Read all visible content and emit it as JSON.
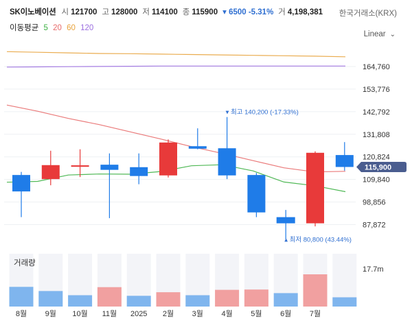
{
  "header": {
    "name": "SK이노베이션",
    "open_label": "시",
    "open": "121700",
    "high_label": "고",
    "high": "128000",
    "low_label": "저",
    "low": "114100",
    "close_label": "종",
    "close": "115900",
    "change": "▾ 6500 -5.31%",
    "volume_label": "거",
    "volume": "4,198,381",
    "exchange": "한국거래소(KRX)"
  },
  "moving_avg": {
    "label": "이동평균",
    "items": [
      {
        "period": "5",
        "color": "#3cb043"
      },
      {
        "period": "20",
        "color": "#e86a6a"
      },
      {
        "period": "60",
        "color": "#e8a33c"
      },
      {
        "period": "120",
        "color": "#9b6ee0"
      }
    ]
  },
  "scale": {
    "label": "Linear"
  },
  "chart_data": {
    "type": "candlestick",
    "x_labels": [
      "8월",
      "9월",
      "10월",
      "11월",
      "2025",
      "2월",
      "3월",
      "4월",
      "5월",
      "6월",
      "7월"
    ],
    "y_ticks": [
      "164,760",
      "153,776",
      "142,792",
      "131,808",
      "120,824",
      "109,840",
      "98,856",
      "87,872"
    ],
    "y_tick_values": [
      164760,
      153776,
      142792,
      131808,
      120824,
      109840,
      98856,
      87872
    ],
    "current_price_label": "115,900",
    "current_price": 115900,
    "candles": [
      {
        "label": "8월",
        "open": 112000,
        "high": 113500,
        "low": 91500,
        "close": 104000
      },
      {
        "label": "9월",
        "open": 110000,
        "high": 123800,
        "low": 107000,
        "close": 116800
      },
      {
        "label": "10월",
        "open": 116000,
        "high": 124500,
        "low": 111000,
        "close": 116700
      },
      {
        "label": "11월",
        "open": 117000,
        "high": 122500,
        "low": 91000,
        "close": 114500
      },
      {
        "label": "2025",
        "open": 115800,
        "high": 122500,
        "low": 107500,
        "close": 111500
      },
      {
        "label": "2월",
        "open": 111800,
        "high": 129300,
        "low": 110800,
        "close": 127800
      },
      {
        "label": "3월",
        "open": 126000,
        "high": 134700,
        "low": 124500,
        "close": 124800
      },
      {
        "label": "4월",
        "open": 125000,
        "high": 140200,
        "low": 110000,
        "close": 111800
      },
      {
        "label": "5월",
        "open": 112000,
        "high": 113000,
        "low": 91500,
        "close": 93800
      },
      {
        "label": "6월",
        "open": 91500,
        "high": 95000,
        "low": 80800,
        "close": 88500
      },
      {
        "label": "7월",
        "open": 88500,
        "high": 123500,
        "low": 87000,
        "close": 122800
      },
      {
        "label": "",
        "open": 121700,
        "high": 128000,
        "low": 114100,
        "close": 115900
      }
    ],
    "moving_averages": [
      {
        "period": "5",
        "values": [
          108500,
          108900,
          112000,
          112500,
          112400,
          113700,
          116500,
          117000,
          114000,
          108600,
          106800,
          103900
        ]
      },
      {
        "period": "20",
        "values": [
          146000,
          143000,
          139500,
          136500,
          133000,
          129500,
          125800,
          122500,
          119000,
          115500,
          113500,
          113800
        ]
      },
      {
        "period": "60",
        "values": [
          172000,
          171700,
          171400,
          171100,
          171000,
          170800,
          170600,
          170400,
          170200,
          170000,
          169800,
          169500
        ]
      },
      {
        "period": "120",
        "values": [
          164500,
          164600,
          164700,
          164800,
          164900,
          165000,
          165000,
          165000,
          165000,
          165000,
          165000,
          165000
        ]
      }
    ],
    "annotations": [
      {
        "text": "▾ 최고 140,200 (-17.33%)",
        "price": 140200,
        "candle": 7
      },
      {
        "text": "▴ 최저 80,800 (43.44%)",
        "price": 80800,
        "candle": 9
      }
    ],
    "volume": {
      "title": "거래량",
      "axis_label": "17.7m",
      "axis_value": 17700000,
      "max": 17700000,
      "bars": [
        {
          "value": 6600000,
          "direction": "down"
        },
        {
          "value": 5200000,
          "direction": "down"
        },
        {
          "value": 3800000,
          "direction": "down"
        },
        {
          "value": 6500000,
          "direction": "up"
        },
        {
          "value": 3600000,
          "direction": "down"
        },
        {
          "value": 4800000,
          "direction": "up"
        },
        {
          "value": 3800000,
          "direction": "down"
        },
        {
          "value": 5600000,
          "direction": "up"
        },
        {
          "value": 5700000,
          "direction": "up"
        },
        {
          "value": 4500000,
          "direction": "down"
        },
        {
          "value": 10800000,
          "direction": "up"
        },
        {
          "value": 3100000,
          "direction": "down"
        }
      ]
    },
    "colors": {
      "up": "#e83a3a",
      "down": "#1f7ce8",
      "up_light": "#f1a0a0",
      "down_light": "#7fb5ee"
    }
  }
}
